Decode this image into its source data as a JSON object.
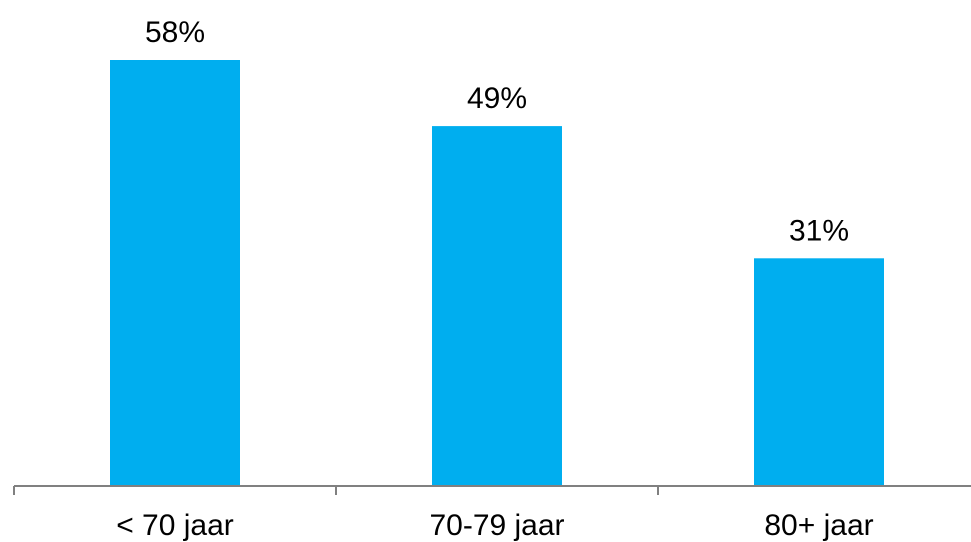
{
  "chart_data": {
    "type": "bar",
    "categories": [
      "< 70 jaar",
      "70-79 jaar",
      "80+ jaar"
    ],
    "values": [
      58,
      49,
      31
    ],
    "data_labels": [
      "58%",
      "49%",
      "31%"
    ],
    "unit": "%",
    "ylim": [
      0,
      65
    ],
    "grid": false,
    "legend": "none",
    "bar_color": "#00AEEF",
    "axis_color": "#808080"
  }
}
